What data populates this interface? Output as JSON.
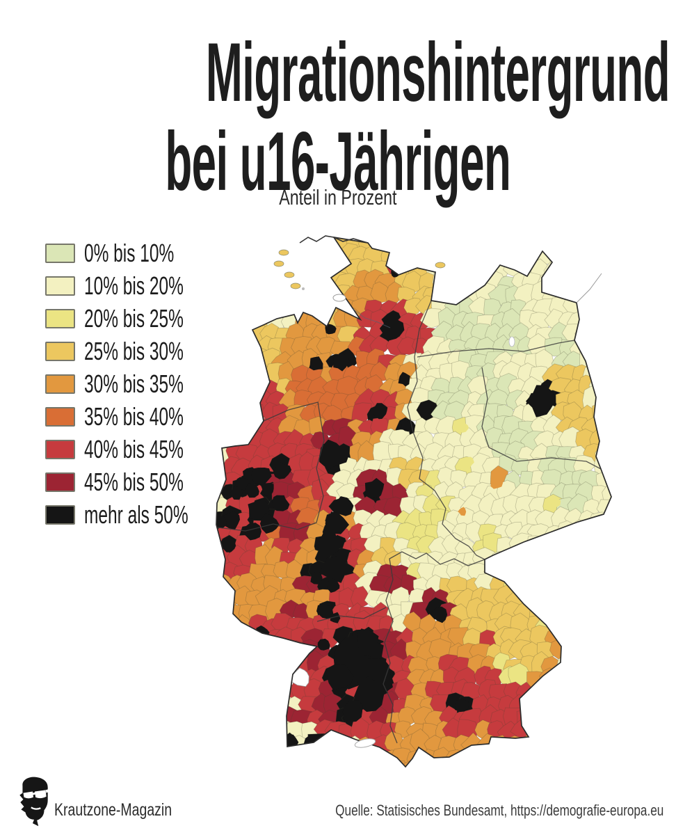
{
  "title": {
    "line1": "Migrationshintergrund",
    "line2": "bei u16-Jährigen"
  },
  "subtitle": "Anteil in Prozent",
  "legend": {
    "items": [
      {
        "label": "0% bis 10%",
        "color": "#dbe6b6"
      },
      {
        "label": "10% bis 20%",
        "color": "#f3f1c1"
      },
      {
        "label": "20% bis 25%",
        "color": "#ebe483"
      },
      {
        "label": "25% bis 30%",
        "color": "#ecc75f"
      },
      {
        "label": "30% bis 35%",
        "color": "#e2983f"
      },
      {
        "label": "35% bis 40%",
        "color": "#d96e35"
      },
      {
        "label": "40% bis 45%",
        "color": "#c63b3e"
      },
      {
        "label": "45% bis 50%",
        "color": "#9c2433"
      },
      {
        "label": "mehr als 50%",
        "color": "#151515"
      }
    ]
  },
  "map": {
    "type": "choropleth",
    "region": "Deutschland (Landkreise)",
    "unit": "Anteil in Prozent",
    "highlights": [
      {
        "area": "Ostdeutschland (Mecklenburg-Vorpommern, Brandenburg, Sachsen-Anhalt, Thüringen, Sachsen)",
        "category": "0% bis 20%"
      },
      {
        "area": "Berlin",
        "category": "mehr als 50%"
      },
      {
        "area": "Hamburg, Bremen, Hannover",
        "category": "mehr als 50%"
      },
      {
        "area": "Ruhrgebiet, Köln, Aachen",
        "category": "mehr als 50%"
      },
      {
        "area": "Rhein-Main (Frankfurt, Wiesbaden, Mainz, Darmstadt)",
        "category": "mehr als 50%"
      },
      {
        "area": "Region Stuttgart und Mittel-Baden-Württemberg",
        "category": "mehr als 50%"
      },
      {
        "area": "München (Stadt), Nürnberg",
        "category": "mehr als 50%"
      },
      {
        "area": "Nordrhein-Westfalen allgemein",
        "category": "40% bis 50%"
      },
      {
        "area": "Niedersachsen",
        "category": "30% bis 40%"
      },
      {
        "area": "Schleswig-Holstein",
        "category": "25% bis 35%"
      },
      {
        "area": "Franken / Nordbayern",
        "category": "10% bis 25%"
      },
      {
        "area": "Ostbayern (Oberpfalz, Niederbayern)",
        "category": "20% bis 30%"
      },
      {
        "area": "Südostbayern und Allgäu",
        "category": "30% bis 40%"
      },
      {
        "area": "Umland München",
        "category": "40% bis 45%"
      },
      {
        "area": "Ostbrandenburg an der Oder",
        "category": "25% bis 30%"
      },
      {
        "area": "Leipzig",
        "category": "30% bis 35%"
      }
    ]
  },
  "footer": {
    "brand": "Krautzone-Magazin",
    "source": "Quelle: Statisisches Bundesamt, https://demografie-europa.eu"
  }
}
